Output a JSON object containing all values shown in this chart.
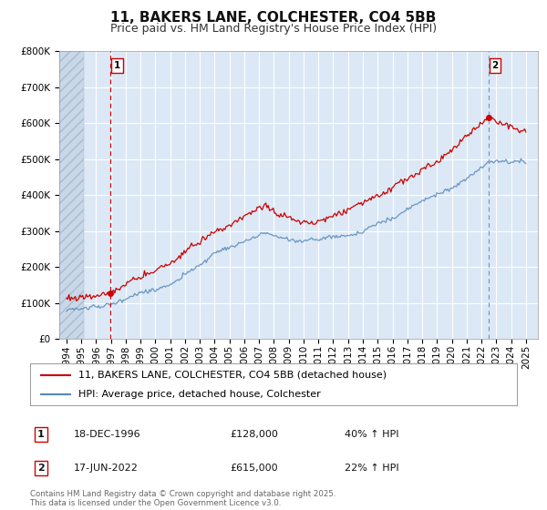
{
  "title": "11, BAKERS LANE, COLCHESTER, CO4 5BB",
  "subtitle": "Price paid vs. HM Land Registry's House Price Index (HPI)",
  "legend_label_red": "11, BAKERS LANE, COLCHESTER, CO4 5BB (detached house)",
  "legend_label_blue": "HPI: Average price, detached house, Colchester",
  "annotation1_label": "1",
  "annotation1_date": "18-DEC-1996",
  "annotation1_price": "£128,000",
  "annotation1_hpi": "40% ↑ HPI",
  "annotation1_year": 1996.96,
  "annotation1_value": 128000,
  "annotation2_label": "2",
  "annotation2_date": "17-JUN-2022",
  "annotation2_price": "£615,000",
  "annotation2_hpi": "22% ↑ HPI",
  "annotation2_year": 2022.46,
  "annotation2_value": 615000,
  "ylim": [
    0,
    800000
  ],
  "yticks": [
    0,
    100000,
    200000,
    300000,
    400000,
    500000,
    600000,
    700000,
    800000
  ],
  "xlim_left": 1993.5,
  "xlim_right": 2025.8,
  "red_color": "#cc0000",
  "blue_color": "#5588bb",
  "blue_dash_color": "#7799cc",
  "dashed_color": "#cc0000",
  "bg_color": "#ffffff",
  "plot_bg_color": "#dce8f5",
  "hatch_bg_color": "#c8d8e8",
  "grid_color": "#ffffff",
  "footer": "Contains HM Land Registry data © Crown copyright and database right 2025.\nThis data is licensed under the Open Government Licence v3.0.",
  "title_fontsize": 11,
  "subtitle_fontsize": 9,
  "tick_fontsize": 7.5,
  "legend_fontsize": 8,
  "ann_fontsize": 8
}
